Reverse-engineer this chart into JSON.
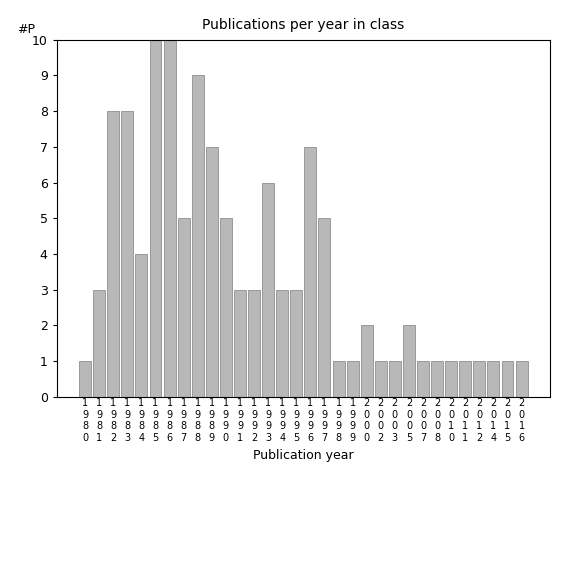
{
  "title": "Publications per year in class",
  "xlabel": "Publication year",
  "ylabel": "#P",
  "bar_color": "#b8b8b8",
  "edge_color": "#808080",
  "ylim": [
    0,
    10
  ],
  "yticks": [
    0,
    1,
    2,
    3,
    4,
    5,
    6,
    7,
    8,
    9,
    10
  ],
  "categories": [
    "1980",
    "1981",
    "1982",
    "1983",
    "1984",
    "1985",
    "1986",
    "1987",
    "1988",
    "1989",
    "1990",
    "1991",
    "1992",
    "1993",
    "1994",
    "1995",
    "1996",
    "1997",
    "1998",
    "1999",
    "2000",
    "2002",
    "2003",
    "2005",
    "2007",
    "2008",
    "2010",
    "2011",
    "2012",
    "2014",
    "2015",
    "2016"
  ],
  "values": [
    1,
    3,
    8,
    8,
    4,
    10,
    10,
    5,
    9,
    7,
    5,
    3,
    3,
    6,
    3,
    3,
    7,
    5,
    1,
    1,
    2,
    1,
    1,
    2,
    1,
    1,
    1,
    1,
    1,
    1,
    1,
    1
  ],
  "figsize": [
    5.67,
    5.67
  ],
  "dpi": 100
}
